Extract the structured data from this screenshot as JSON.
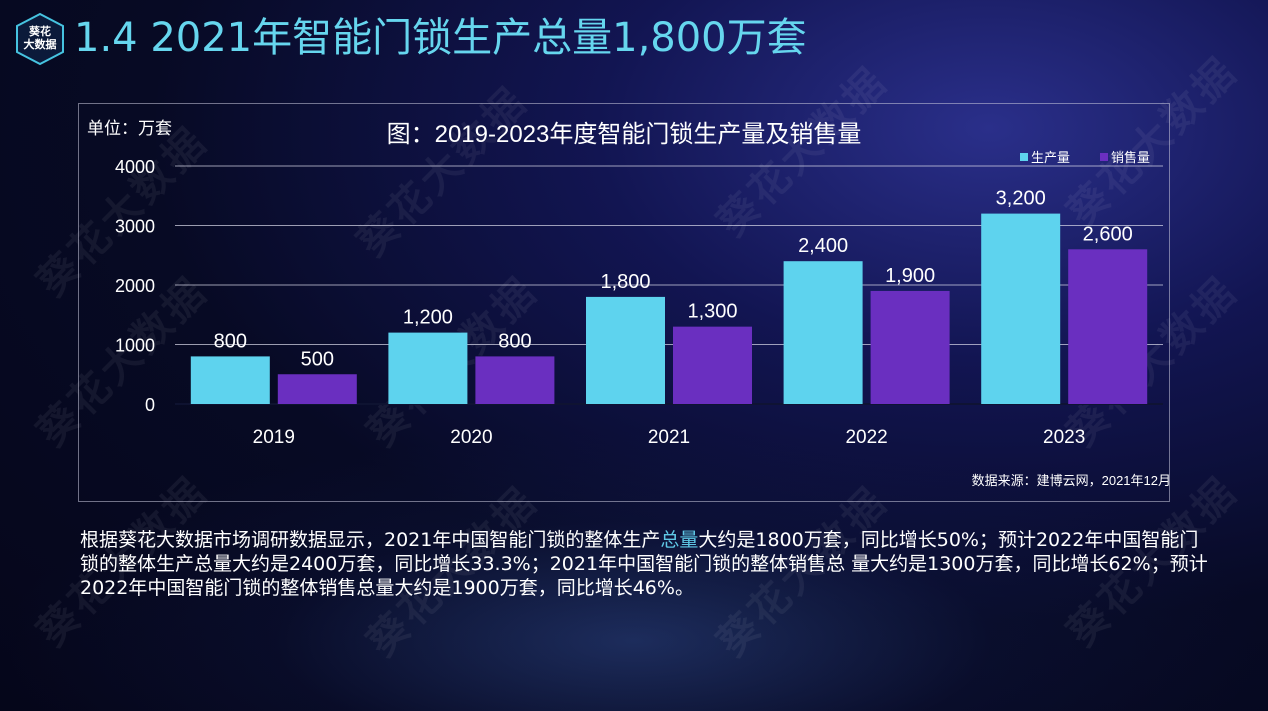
{
  "page": {
    "title": "1.4 2021年智能门锁生产总量1,800万套",
    "logo_text_line1": "葵花",
    "logo_text_line2": "大数据",
    "watermark": "葵花大数据",
    "description_part1": "根据葵花大数据市场调研数据显示，2021年中国智能门锁的整体生产",
    "description_highlight": "总量",
    "description_part2": "大约是1800万套，同比增长50%；预计2022年中国智能门锁的整体生产总量大约是2400万套，同比增长33.3%；2021年中国智能门锁的整体销售总 量大约是1300万套，同比增长62%；预计2022年中国智能门锁的整体销售总量大约是1900万套，同比增长46%。",
    "colors": {
      "accent": "#66d6ee",
      "production": "#5ed3ee",
      "sales": "#6a2fc0",
      "background": "#070a24"
    }
  },
  "chart_data": {
    "type": "bar",
    "title": "图：2019-2023年度智能门锁生产量及销售量",
    "unit_label": "单位：万套",
    "source": "数据来源：建博云网，2021年12月",
    "categories": [
      "2019",
      "2020",
      "2021",
      "2022",
      "2023"
    ],
    "series": [
      {
        "name": "生产量",
        "values": [
          800,
          1200,
          1800,
          2400,
          3200
        ],
        "labels": [
          "800",
          "1,200",
          "1,800",
          "2,400",
          "3,200"
        ],
        "color": "#5ed3ee"
      },
      {
        "name": "销售量",
        "values": [
          500,
          800,
          1300,
          1900,
          2600
        ],
        "labels": [
          "500",
          "800",
          "1,300",
          "1,900",
          "2,600"
        ],
        "color": "#6a2fc0"
      }
    ],
    "ylim": [
      0,
      4000
    ],
    "yticks": [
      0,
      1000,
      2000,
      3000,
      4000
    ],
    "grid": true,
    "legend": "top-right"
  }
}
